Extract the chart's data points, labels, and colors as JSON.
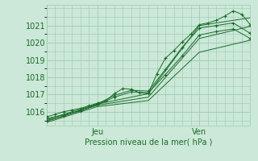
{
  "title": "",
  "xlabel": "Pression niveau de la mer( hPa )",
  "ylabel": "",
  "bg_color": "#cce8d8",
  "grid_color": "#99ccb0",
  "line_color": "#1a6b2a",
  "xlim": [
    0,
    48
  ],
  "ylim": [
    1015.2,
    1022.2
  ],
  "yticks": [
    1016,
    1017,
    1018,
    1019,
    1020,
    1021
  ],
  "xtick_positions": [
    12,
    36
  ],
  "xtick_labels": [
    "Jeu",
    "Ven"
  ],
  "vlines": [
    12,
    36
  ],
  "series": [
    [
      0,
      1015.7,
      2,
      1015.85,
      4,
      1016.0,
      6,
      1016.1,
      8,
      1016.2,
      10,
      1016.35,
      12,
      1016.5,
      14,
      1016.65,
      16,
      1017.05,
      18,
      1017.35,
      20,
      1017.3,
      22,
      1017.1,
      24,
      1017.05,
      26,
      1018.2,
      28,
      1019.1,
      30,
      1019.55,
      32,
      1020.05,
      34,
      1020.5,
      36,
      1021.05,
      38,
      1021.15,
      40,
      1021.3,
      42,
      1021.55,
      44,
      1021.85,
      46,
      1021.65,
      48,
      1021.05
    ],
    [
      0,
      1015.6,
      4,
      1015.82,
      8,
      1016.05,
      12,
      1016.45,
      16,
      1016.95,
      20,
      1017.25,
      24,
      1017.2,
      28,
      1018.45,
      32,
      1019.75,
      36,
      1020.85,
      40,
      1021.0,
      44,
      1021.15,
      48,
      1020.55
    ],
    [
      0,
      1015.5,
      4,
      1015.75,
      8,
      1016.1,
      12,
      1016.4,
      16,
      1016.85,
      20,
      1017.15,
      24,
      1017.1,
      28,
      1018.15,
      32,
      1019.25,
      36,
      1020.45,
      40,
      1020.65,
      44,
      1020.8,
      48,
      1020.25
    ],
    [
      0,
      1015.55,
      12,
      1016.45,
      24,
      1017.05,
      36,
      1021.0,
      48,
      1021.45
    ],
    [
      0,
      1015.45,
      12,
      1016.38,
      24,
      1016.85,
      36,
      1020.25,
      48,
      1020.95
    ],
    [
      0,
      1015.38,
      12,
      1016.3,
      24,
      1016.65,
      36,
      1019.45,
      48,
      1020.15
    ]
  ]
}
